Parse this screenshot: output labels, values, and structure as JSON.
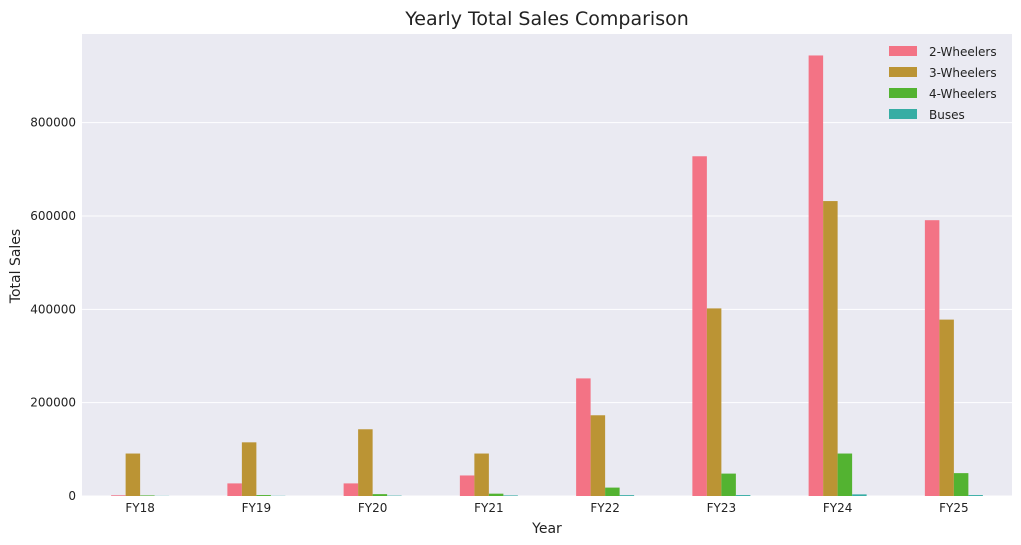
{
  "chart_data": {
    "type": "bar",
    "title": "Yearly Total Sales Comparison",
    "xlabel": "Year",
    "ylabel": "Total Sales",
    "categories": [
      "FY18",
      "FY19",
      "FY20",
      "FY21",
      "FY22",
      "FY23",
      "FY24",
      "FY25"
    ],
    "ylim": [
      0,
      990000
    ],
    "yticks": [
      0,
      200000,
      400000,
      600000,
      800000
    ],
    "ytick_labels": [
      "0",
      "200000",
      "400000",
      "600000",
      "800000"
    ],
    "grid": true,
    "legend_position": "top-right",
    "background": "#eaeaf2",
    "series": [
      {
        "name": "2-Wheelers",
        "color": "#f37385",
        "values": [
          1500,
          27000,
          27000,
          44000,
          252000,
          728000,
          944000,
          591000
        ]
      },
      {
        "name": "3-Wheelers",
        "color": "#bb9434",
        "values": [
          91000,
          115000,
          143000,
          91000,
          173000,
          402000,
          632000,
          378000
        ]
      },
      {
        "name": "4-Wheelers",
        "color": "#53b331",
        "values": [
          1200,
          2000,
          4000,
          5000,
          18000,
          48000,
          91000,
          49000
        ]
      },
      {
        "name": "Buses",
        "color": "#36ada4",
        "values": [
          300,
          400,
          800,
          1200,
          1800,
          2000,
          3500,
          2000
        ]
      }
    ]
  }
}
